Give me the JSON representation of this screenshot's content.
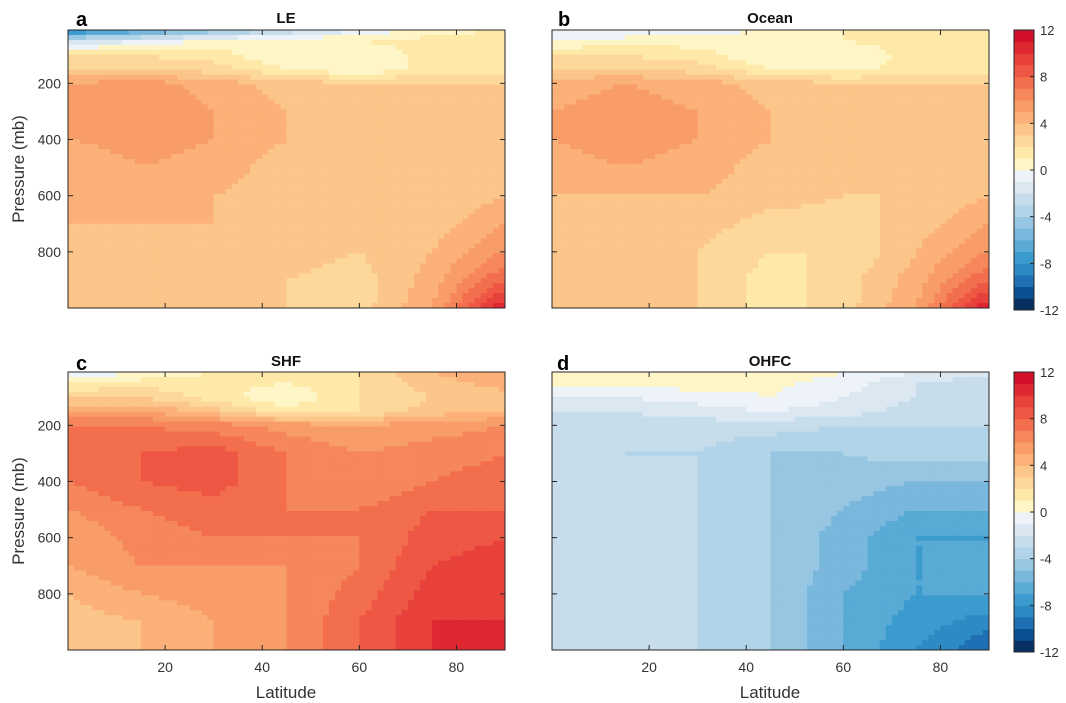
{
  "chart_data": [
    {
      "type": "contour",
      "panel": "a",
      "title": "LE",
      "xlabel": "",
      "ylabel": "Pressure (mb)",
      "xlim": [
        0,
        90
      ],
      "ylim": [
        1000,
        10
      ],
      "y_reversed": true,
      "x_ticks": [
        20,
        40,
        60,
        80
      ],
      "y_ticks": [
        200,
        400,
        600,
        800
      ],
      "x_ticks_labeled": false,
      "field": {
        "x": [
          0,
          15,
          30,
          45,
          60,
          75,
          90
        ],
        "p": [
          10,
          50,
          100,
          150,
          200,
          300,
          400,
          500,
          600,
          700,
          800,
          900,
          1000
        ],
        "z": [
          [
            -9,
            -7,
            -5,
            -3,
            -1,
            0.5,
            1
          ],
          [
            -2,
            -1,
            0.5,
            1,
            1,
            1.5,
            2
          ],
          [
            2,
            2,
            1.5,
            0,
            0,
            1.5,
            1.5
          ],
          [
            3,
            3,
            2.5,
            1,
            0,
            1.5,
            1.5
          ],
          [
            5,
            5.5,
            4.5,
            3.5,
            3,
            3,
            3
          ],
          [
            6,
            6,
            5,
            4,
            3,
            3,
            3
          ],
          [
            5,
            5.5,
            5,
            4,
            3,
            3,
            3.5
          ],
          [
            4,
            5,
            4.5,
            3.5,
            3,
            3,
            3.5
          ],
          [
            4,
            4,
            4,
            3.5,
            3,
            3,
            4
          ],
          [
            4,
            4,
            4,
            3.5,
            3,
            3.5,
            5
          ],
          [
            4,
            3.5,
            4,
            3.5,
            3,
            4,
            6
          ],
          [
            3.5,
            3.5,
            3.5,
            3,
            2.5,
            4.5,
            8
          ],
          [
            3.5,
            3.5,
            3,
            3,
            2.5,
            5,
            11
          ]
        ]
      }
    },
    {
      "type": "contour",
      "panel": "b",
      "title": "Ocean",
      "xlabel": "",
      "ylabel": "",
      "xlim": [
        0,
        90
      ],
      "ylim": [
        1000,
        10
      ],
      "y_reversed": true,
      "x_ticks": [
        20,
        40,
        60,
        80
      ],
      "y_ticks": [
        200,
        400,
        600,
        800
      ],
      "x_ticks_labeled": false,
      "y_ticks_labeled": false,
      "field": {
        "x": [
          0,
          15,
          30,
          45,
          60,
          75,
          90
        ],
        "p": [
          10,
          50,
          100,
          150,
          200,
          300,
          400,
          500,
          600,
          700,
          800,
          900,
          1000
        ],
        "z": [
          [
            -1,
            -1,
            -0.5,
            0,
            1,
            1.5,
            2
          ],
          [
            0,
            0.5,
            0.5,
            1,
            1,
            1.5,
            2
          ],
          [
            2,
            2,
            1.5,
            0,
            0,
            1.5,
            1.5
          ],
          [
            3,
            3,
            2.5,
            1,
            0.5,
            1.5,
            1.5
          ],
          [
            4.5,
            5,
            4.5,
            3.5,
            3,
            3,
            3
          ],
          [
            5,
            5.5,
            5,
            4,
            3,
            3,
            3
          ],
          [
            5,
            5.5,
            5,
            4,
            3,
            3,
            3.5
          ],
          [
            4.5,
            5,
            4.5,
            3.5,
            3,
            3,
            3.5
          ],
          [
            4,
            4,
            4,
            3.5,
            3,
            3,
            4
          ],
          [
            3.5,
            3.5,
            3.5,
            2.5,
            2.5,
            3.5,
            5
          ],
          [
            3.5,
            3.5,
            3,
            2,
            2,
            4,
            6
          ],
          [
            3,
            3.5,
            3,
            1.5,
            2.5,
            4.5,
            8
          ],
          [
            3,
            3.5,
            3,
            1.5,
            2.5,
            5,
            11
          ]
        ]
      }
    },
    {
      "type": "contour",
      "panel": "c",
      "title": "SHF",
      "xlabel": "Latitude",
      "ylabel": "Pressure (mb)",
      "xlim": [
        0,
        90
      ],
      "ylim": [
        1000,
        10
      ],
      "y_reversed": true,
      "x_ticks": [
        20,
        40,
        60,
        80
      ],
      "y_ticks": [
        200,
        400,
        600,
        800
      ],
      "field": {
        "x": [
          0,
          15,
          30,
          45,
          60,
          75,
          90
        ],
        "p": [
          10,
          50,
          100,
          150,
          200,
          300,
          400,
          500,
          600,
          700,
          800,
          900,
          1000
        ],
        "z": [
          [
            -1,
            0,
            1,
            1,
            2,
            4,
            5
          ],
          [
            1,
            1.5,
            1.5,
            1,
            2,
            3.5,
            4.5
          ],
          [
            3,
            3,
            1.5,
            0,
            2,
            3,
            3.5
          ],
          [
            5,
            5,
            3.5,
            1.5,
            2,
            3.5,
            4
          ],
          [
            7,
            7,
            6.5,
            5.5,
            5,
            5.5,
            6
          ],
          [
            8,
            8,
            8.5,
            7,
            6,
            6.5,
            7
          ],
          [
            7,
            8,
            8.5,
            7,
            6,
            7,
            7.5
          ],
          [
            6,
            7,
            7.5,
            7,
            7,
            8,
            8
          ],
          [
            5,
            6.5,
            7,
            7,
            7,
            8.5,
            9
          ],
          [
            5,
            6,
            6,
            6,
            7,
            9,
            9.5
          ],
          [
            4,
            5,
            5.5,
            6,
            7.5,
            9.5,
            10
          ],
          [
            3.5,
            4,
            5,
            6,
            8,
            10,
            10
          ],
          [
            3,
            4,
            5,
            6,
            8,
            10,
            10
          ]
        ]
      }
    },
    {
      "type": "contour",
      "panel": "d",
      "title": "OHFC",
      "xlabel": "Latitude",
      "ylabel": "",
      "xlim": [
        0,
        90
      ],
      "ylim": [
        1000,
        10
      ],
      "y_reversed": true,
      "x_ticks": [
        20,
        40,
        60,
        80
      ],
      "y_ticks": [
        200,
        400,
        600,
        800
      ],
      "y_ticks_labeled": false,
      "field": {
        "x": [
          0,
          15,
          30,
          45,
          60,
          75,
          90
        ],
        "p": [
          10,
          50,
          100,
          150,
          200,
          300,
          400,
          500,
          600,
          700,
          800,
          900,
          1000
        ],
        "z": [
          [
            1,
            1,
            1,
            1,
            0,
            -1,
            -1
          ],
          [
            0.5,
            0.5,
            0.5,
            0.3,
            -0.5,
            -2,
            -3
          ],
          [
            -1,
            -1,
            -0.5,
            0,
            -1,
            -2,
            -2.5
          ],
          [
            -2,
            -2,
            -1.5,
            -1,
            -1.5,
            -2.5,
            -3
          ],
          [
            -2.5,
            -2.5,
            -2.5,
            -2.5,
            -3,
            -3,
            -3
          ],
          [
            -2.5,
            -3,
            -3,
            -4,
            -4,
            -3.5,
            -3.5
          ],
          [
            -2.5,
            -3,
            -3,
            -4,
            -4.5,
            -5,
            -5
          ],
          [
            -2.5,
            -2.5,
            -3,
            -4,
            -5,
            -6,
            -6
          ],
          [
            -2,
            -2.5,
            -3,
            -4,
            -5.5,
            -7,
            -7
          ],
          [
            -2,
            -2.5,
            -3,
            -4,
            -5.5,
            -7,
            -7
          ],
          [
            -2,
            -2.5,
            -3,
            -4,
            -6,
            -7,
            -7
          ],
          [
            -2,
            -2.5,
            -3,
            -4,
            -6,
            -7.5,
            -8.5
          ],
          [
            -2,
            -2.5,
            -3,
            -4,
            -6,
            -8,
            -10
          ]
        ]
      }
    }
  ],
  "colorbar": {
    "levels": [
      -12,
      -11,
      -10,
      -9,
      -8,
      -7,
      -6,
      -5,
      -4,
      -3,
      -2,
      -1,
      0,
      1,
      2,
      3,
      4,
      5,
      6,
      7,
      8,
      9,
      10,
      11,
      12
    ],
    "tick_labels": [
      "-12",
      "-8",
      "-4",
      "0",
      "4",
      "8",
      "12"
    ],
    "tick_values": [
      -12,
      -8,
      -4,
      0,
      4,
      8,
      12
    ],
    "colors": [
      "#053061",
      "#0a4f91",
      "#1f6fb5",
      "#2e8ac3",
      "#3c9bce",
      "#5aaad6",
      "#7ab7dc",
      "#97c6e2",
      "#b2d4e8",
      "#c7ddec",
      "#dbe8f2",
      "#eef3fa",
      "#fff6c8",
      "#ffe9a8",
      "#fdd89a",
      "#fcc589",
      "#fbb177",
      "#f89d68",
      "#f6875a",
      "#f26e4d",
      "#ee5744",
      "#e8403a",
      "#df2731",
      "#d2102a"
    ]
  },
  "labels": {
    "panel_a": "a",
    "panel_b": "b",
    "panel_c": "c",
    "panel_d": "d",
    "title_a": "LE",
    "title_b": "Ocean",
    "title_c": "SHF",
    "title_d": "OHFC",
    "ylabel_top": "Pressure (mb)",
    "ylabel_bottom": "Pressure (mb)",
    "xlabel_left": "Latitude",
    "xlabel_right": "Latitude"
  }
}
